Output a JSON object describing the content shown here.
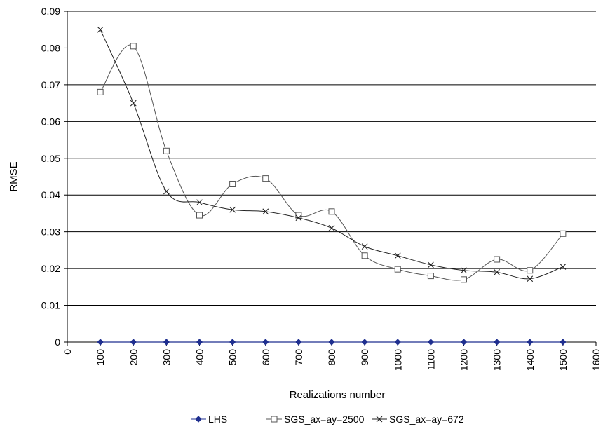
{
  "chart_data": {
    "type": "line",
    "title": "",
    "xlabel": "Realizations number",
    "ylabel": "RMSE",
    "xlim": [
      0,
      1600
    ],
    "ylim": [
      0,
      0.09
    ],
    "x_ticks": [
      "0",
      "100",
      "200",
      "300",
      "400",
      "500",
      "600",
      "700",
      "800",
      "900",
      "1000",
      "1100",
      "1200",
      "1300",
      "1400",
      "1500",
      "1600"
    ],
    "y_ticks": [
      "0",
      "0.01",
      "0.02",
      "0.03",
      "0.04",
      "0.05",
      "0.06",
      "0.07",
      "0.08",
      "0.09"
    ],
    "grid": "horizontal",
    "legend_position": "bottom",
    "x": [
      100,
      200,
      300,
      400,
      500,
      600,
      700,
      800,
      900,
      1000,
      1100,
      1200,
      1300,
      1400,
      1500
    ],
    "series": [
      {
        "name": "LHS",
        "marker": "diamond",
        "color": "#1f2f8f",
        "smooth": false,
        "values": [
          0,
          0,
          0,
          0,
          0,
          0,
          0,
          0,
          0,
          0,
          0,
          0,
          0,
          0,
          0
        ]
      },
      {
        "name": "SGS_ax=ay=2500",
        "marker": "square",
        "color": "#555555",
        "smooth": true,
        "values": [
          0.068,
          0.0805,
          0.052,
          0.0345,
          0.043,
          0.0445,
          0.0345,
          0.0355,
          0.0235,
          0.0198,
          0.018,
          0.017,
          0.0225,
          0.0195,
          0.0295
        ]
      },
      {
        "name": "SGS_ax=ay=672",
        "marker": "x",
        "color": "#222222",
        "smooth": true,
        "values": [
          0.085,
          0.065,
          0.041,
          0.038,
          0.036,
          0.0355,
          0.0338,
          0.031,
          0.026,
          0.0235,
          0.021,
          0.0195,
          0.019,
          0.0172,
          0.0205
        ]
      }
    ]
  }
}
